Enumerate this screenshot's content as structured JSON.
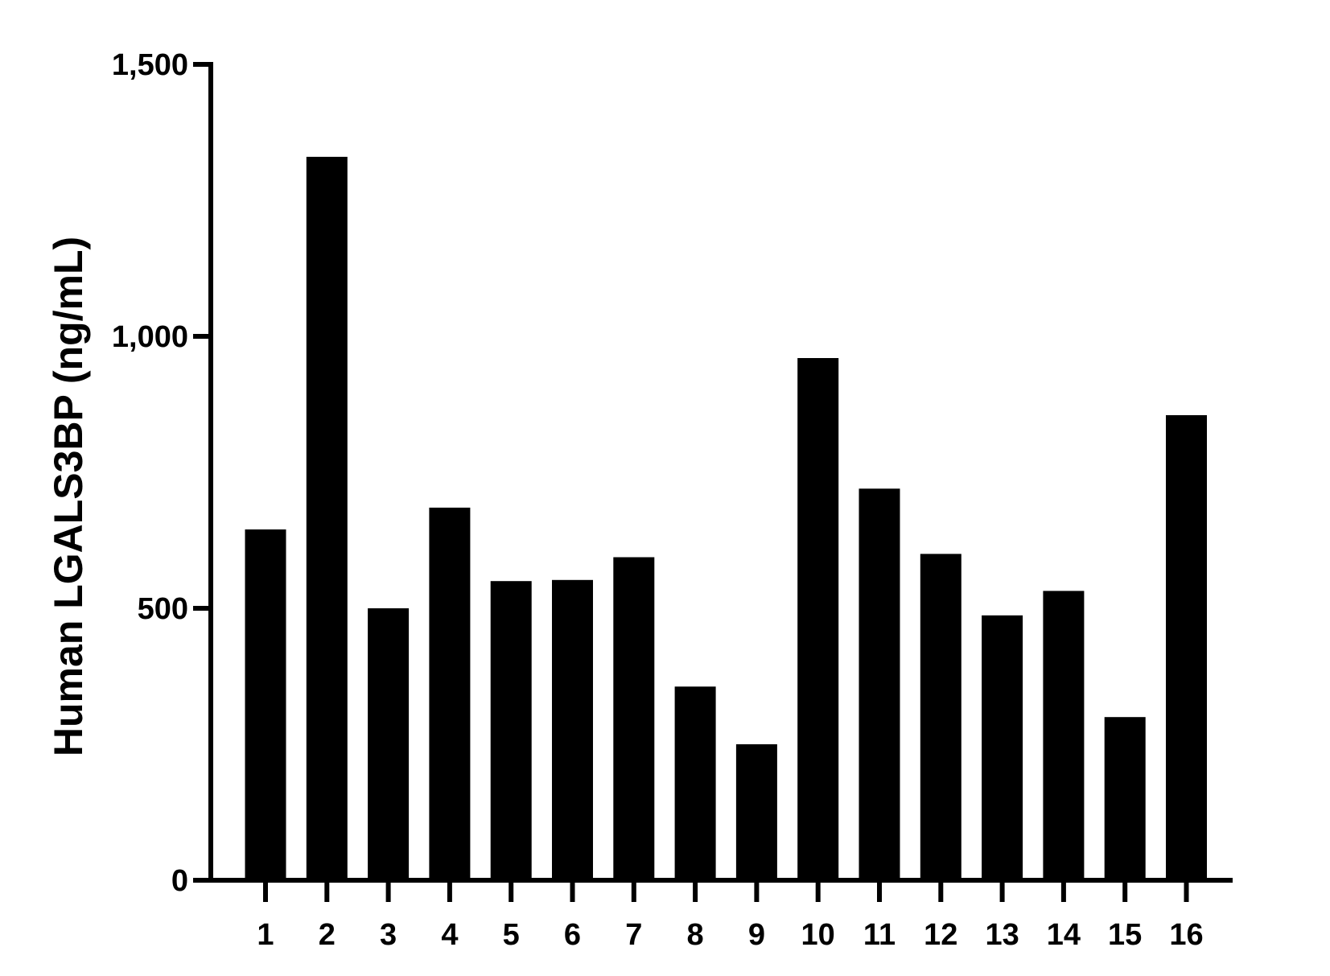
{
  "chart_data": {
    "type": "bar",
    "title": "",
    "xlabel": "",
    "ylabel": "Human LGALS3BP (ng/mL)",
    "ylim": [
      0,
      1500
    ],
    "yticks": [
      0,
      500,
      1000,
      1500
    ],
    "ytick_labels": [
      "0",
      "500",
      "1,000",
      "1,500"
    ],
    "grid": false,
    "legend": "none",
    "categories": [
      "1",
      "2",
      "3",
      "4",
      "5",
      "6",
      "7",
      "8",
      "9",
      "10",
      "11",
      "12",
      "13",
      "14",
      "15",
      "16"
    ],
    "values": [
      645,
      1330,
      500,
      685,
      550,
      552,
      594,
      356,
      250,
      960,
      720,
      600,
      487,
      532,
      300,
      855
    ],
    "colors": {
      "bar": "#000000",
      "axis": "#000000",
      "background": "#ffffff"
    }
  }
}
